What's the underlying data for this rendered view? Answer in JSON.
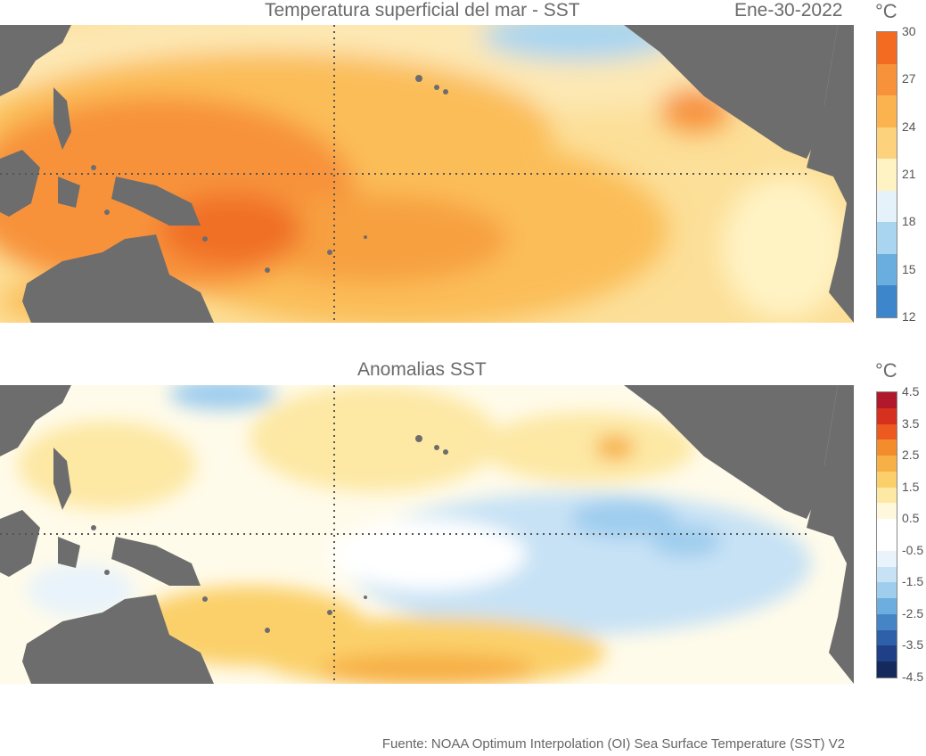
{
  "sst_panel": {
    "title": "Temperatura superficial del mar - SST",
    "date": "Ene-30-2022",
    "unit": "°C",
    "colorbar": {
      "labels": [
        "30",
        "27",
        "24",
        "21",
        "18",
        "15",
        "12"
      ],
      "colors": [
        "#f26b21",
        "#f7923a",
        "#fbb34f",
        "#fdd27c",
        "#fff3c4",
        "#e6f2fa",
        "#a9d5f0",
        "#6aaee0",
        "#3d86cc"
      ]
    }
  },
  "anom_panel": {
    "title": "Anomalias SST",
    "unit": "°C",
    "colorbar": {
      "labels": [
        "4.5",
        "3.5",
        "2.5",
        "1.5",
        "0.5",
        "-0.5",
        "-1.5",
        "-2.5",
        "-3.5",
        "-4.5"
      ],
      "colors": [
        "#b2182b",
        "#d6301f",
        "#ec5a1f",
        "#f28c2c",
        "#f7b046",
        "#fbd06b",
        "#fde8a4",
        "#fff8dc",
        "#ffffff",
        "#ffffff",
        "#e8f3fb",
        "#c7e2f5",
        "#9fcdee",
        "#6caedf",
        "#4585c6",
        "#2d60a8",
        "#1f3f86",
        "#152a5c"
      ]
    }
  },
  "footer": {
    "source": "Fuente: NOAA Optimum Interpolation (OI) Sea Surface Temperature (SST) V2"
  }
}
